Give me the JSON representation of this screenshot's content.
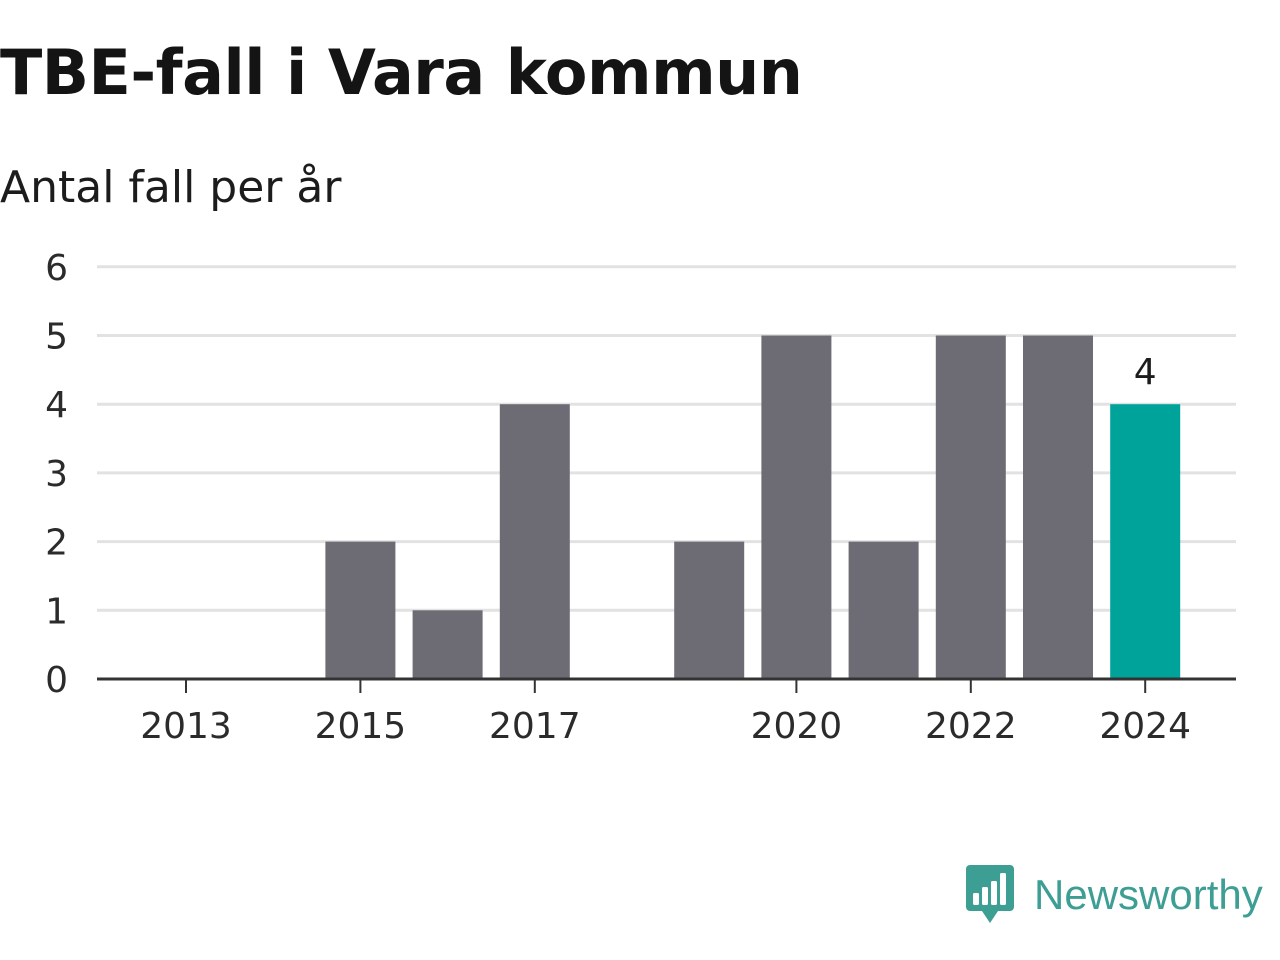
{
  "header": {
    "title": "TBE-fall i Vara kommun",
    "subtitle": "Antal fall per år"
  },
  "brand": {
    "name": "Newsworthy",
    "logo_icon": "bar-chart-speech-bubble-icon",
    "color": "#3d9e93"
  },
  "chart_data": {
    "type": "bar",
    "categories": [
      "2013",
      "2014",
      "2015",
      "2016",
      "2017",
      "2018",
      "2019",
      "2020",
      "2021",
      "2022",
      "2023",
      "2024"
    ],
    "values": [
      0,
      0,
      2,
      1,
      4,
      0,
      2,
      5,
      2,
      5,
      5,
      4
    ],
    "x_tick_labels": [
      "2013",
      "2015",
      "2017",
      "2020",
      "2022",
      "2024"
    ],
    "y_ticks": [
      0,
      1,
      2,
      3,
      4,
      5,
      6
    ],
    "ylim": [
      0,
      6
    ],
    "title": "TBE-fall i Vara kommun",
    "subtitle": "Antal fall per år",
    "xlabel": "",
    "ylabel": "",
    "grid": true,
    "highlight": {
      "category": "2024",
      "label": "4"
    },
    "colors": {
      "bar": "#6d6c74",
      "highlight": "#00a39a",
      "grid": "#e2e2e2",
      "axis": "#333333"
    }
  }
}
